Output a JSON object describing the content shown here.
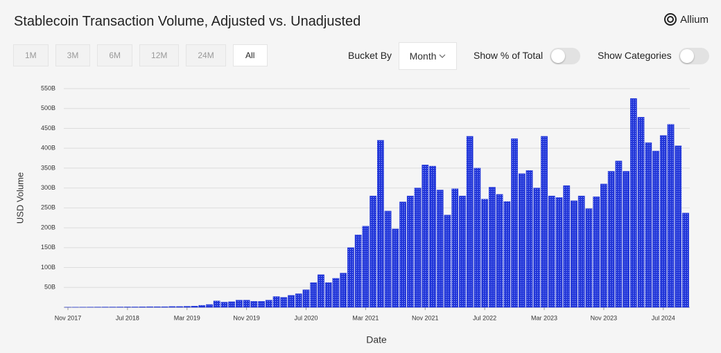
{
  "header": {
    "title": "Stablecoin Transaction Volume, Adjusted vs. Unadjusted",
    "brand": "Allium"
  },
  "controls": {
    "ranges": [
      "1M",
      "3M",
      "6M",
      "12M",
      "24M",
      "All"
    ],
    "active_range": "All",
    "bucket_label": "Bucket By",
    "bucket_value": "Month",
    "toggles": [
      "Show % of Total",
      "Show Categories"
    ]
  },
  "chart_data": {
    "type": "bar",
    "xlabel": "Date",
    "ylabel": "USD Volume",
    "categories": [
      "Nov 2017",
      null,
      null,
      null,
      null,
      null,
      null,
      null,
      "Jul 2018",
      null,
      null,
      null,
      null,
      null,
      null,
      null,
      "Mar 2019",
      null,
      null,
      null,
      null,
      null,
      null,
      null,
      "Nov 2019",
      null,
      null,
      null,
      null,
      null,
      null,
      null,
      "Jul 2020",
      null,
      null,
      null,
      null,
      null,
      null,
      null,
      "Mar 2021",
      null,
      null,
      null,
      null,
      null,
      null,
      null,
      "Nov 2021",
      null,
      null,
      null,
      null,
      null,
      null,
      null,
      "Jul 2022",
      null,
      null,
      null,
      null,
      null,
      null,
      null,
      "Mar 2023",
      null,
      null,
      null,
      null,
      null,
      null,
      null,
      "Nov 2023",
      null,
      null,
      null,
      null,
      null,
      null,
      null,
      "Jul 2024",
      null,
      null,
      null
    ],
    "values": [
      0.3,
      0.4,
      0.5,
      0.6,
      0.7,
      0.8,
      0.8,
      0.9,
      1,
      1,
      1.2,
      1.5,
      1.5,
      1.5,
      2,
      2,
      2.5,
      3,
      5,
      7,
      16,
      13,
      14,
      18,
      18,
      15,
      15,
      18,
      27,
      25,
      30,
      34,
      44,
      62,
      82,
      62,
      73,
      86,
      150,
      182,
      204,
      280,
      420,
      242,
      197,
      265,
      280,
      300,
      358,
      355,
      295,
      232,
      298,
      280,
      430,
      350,
      272,
      302,
      284,
      266,
      424,
      336,
      344,
      300,
      430,
      280,
      276,
      306,
      268,
      280,
      248,
      278,
      310,
      342,
      368,
      342,
      525,
      478,
      414,
      393,
      432,
      460,
      406,
      237
    ],
    "color": "#2236d8",
    "ylim": [
      0,
      550
    ],
    "yticks": [
      {
        "value": 50,
        "label": "50B"
      },
      {
        "value": 100,
        "label": "100B"
      },
      {
        "value": 150,
        "label": "150B"
      },
      {
        "value": 200,
        "label": "200B"
      },
      {
        "value": 250,
        "label": "250B"
      },
      {
        "value": 300,
        "label": "300B"
      },
      {
        "value": 350,
        "label": "350B"
      },
      {
        "value": 400,
        "label": "400B"
      },
      {
        "value": 450,
        "label": "450B"
      },
      {
        "value": 500,
        "label": "500B"
      },
      {
        "value": 550,
        "label": "550B"
      }
    ],
    "grid": true
  }
}
